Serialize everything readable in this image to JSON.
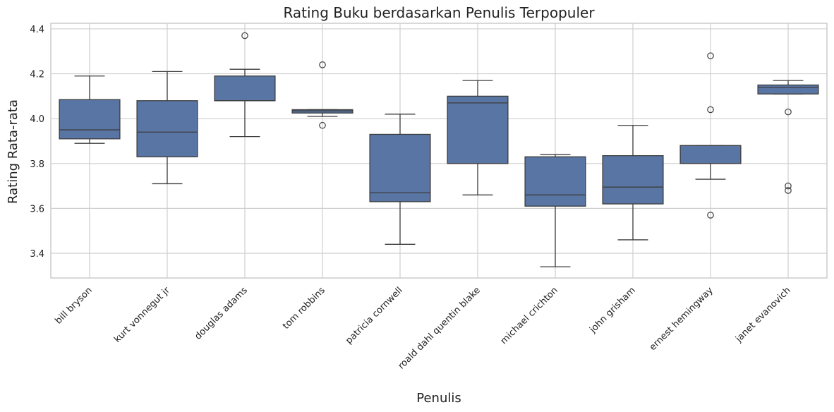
{
  "chart_data": {
    "type": "box",
    "title": "Rating Buku berdasarkan Penulis Terpopuler",
    "xlabel": "Penulis",
    "ylabel": "Rating Rata-rata",
    "ylim": [
      3.29,
      4.425
    ],
    "yticks": [
      3.4,
      3.6,
      3.8,
      4.0,
      4.2,
      4.4
    ],
    "ytick_labels": [
      "3.4",
      "3.6",
      "3.8",
      "4.0",
      "4.2",
      "4.4"
    ],
    "grid": true,
    "colors": {
      "box_fill": "#5875a4",
      "line": "#3d3d3d",
      "grid": "#cfcfcf",
      "frame": "#cccccc"
    },
    "categories": [
      "bill bryson",
      "kurt vonnegut jr",
      "douglas adams",
      "tom robbins",
      "patricia cornwell",
      "roald dahl quentin blake",
      "michael crichton",
      "john grisham",
      "ernest hemingway",
      "janet evanovich"
    ],
    "boxes": [
      {
        "whisker_low": 3.89,
        "q1": 3.91,
        "median": 3.95,
        "q3": 4.085,
        "whisker_high": 4.19,
        "outliers": []
      },
      {
        "whisker_low": 3.71,
        "q1": 3.83,
        "median": 3.94,
        "q3": 4.08,
        "whisker_high": 4.21,
        "outliers": []
      },
      {
        "whisker_low": 3.92,
        "q1": 4.08,
        "median": 4.08,
        "q3": 4.19,
        "whisker_high": 4.22,
        "outliers": [
          4.37
        ]
      },
      {
        "whisker_low": 4.01,
        "q1": 4.025,
        "median": 4.035,
        "q3": 4.04,
        "whisker_high": 4.04,
        "outliers": [
          4.24,
          3.97
        ]
      },
      {
        "whisker_low": 3.44,
        "q1": 3.63,
        "median": 3.67,
        "q3": 3.93,
        "whisker_high": 4.02,
        "outliers": []
      },
      {
        "whisker_low": 3.66,
        "q1": 3.8,
        "median": 4.07,
        "q3": 4.1,
        "whisker_high": 4.17,
        "outliers": []
      },
      {
        "whisker_low": 3.34,
        "q1": 3.61,
        "median": 3.66,
        "q3": 3.83,
        "whisker_high": 3.84,
        "outliers": []
      },
      {
        "whisker_low": 3.46,
        "q1": 3.62,
        "median": 3.695,
        "q3": 3.835,
        "whisker_high": 3.97,
        "outliers": []
      },
      {
        "whisker_low": 3.73,
        "q1": 3.8,
        "median": 3.88,
        "q3": 3.88,
        "whisker_high": 3.88,
        "outliers": [
          4.28,
          4.04,
          3.57
        ]
      },
      {
        "whisker_low": 4.11,
        "q1": 4.11,
        "median": 4.14,
        "q3": 4.15,
        "whisker_high": 4.17,
        "outliers": [
          4.03,
          3.7,
          3.68
        ]
      }
    ]
  }
}
